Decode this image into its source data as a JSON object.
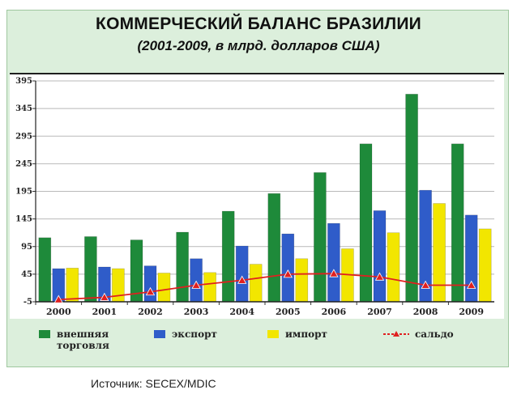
{
  "page": {
    "title": "КОММЕРЧЕСКИЙ БАЛАНС БРАЗИЛИИ",
    "subtitle": "(2001-2009, в млрд. долларов США)",
    "source": "Источник: SECEX/MDIC"
  },
  "colors": {
    "trade": "#1e8a3a",
    "export": "#2f5cc9",
    "import": "#f2e600",
    "balance": "#e02020"
  },
  "chart_data": {
    "type": "bar",
    "categories": [
      "2000",
      "2001",
      "2002",
      "2003",
      "2004",
      "2005",
      "2006",
      "2007",
      "2008",
      "2009"
    ],
    "yticks": [
      "395",
      "345",
      "295",
      "245",
      "195",
      "145",
      "95",
      "45",
      "-5"
    ],
    "ylim": [
      -5,
      395
    ],
    "grid": true,
    "legend_position": "bottom",
    "series": [
      {
        "name": "внешняя торговля",
        "type": "bar",
        "values": [
          111,
          113,
          107,
          121,
          159,
          191,
          229,
          281,
          371,
          281
        ]
      },
      {
        "name": "экспорт",
        "type": "bar",
        "values": [
          55,
          58,
          60,
          73,
          96,
          118,
          137,
          160,
          197,
          152
        ]
      },
      {
        "name": "импорт",
        "type": "bar",
        "values": [
          56,
          55,
          47,
          48,
          63,
          73,
          91,
          120,
          173,
          127
        ]
      },
      {
        "name": "сальдо",
        "type": "line",
        "values": [
          -1,
          3,
          13,
          25,
          34,
          45,
          46,
          40,
          25,
          25
        ]
      }
    ]
  }
}
